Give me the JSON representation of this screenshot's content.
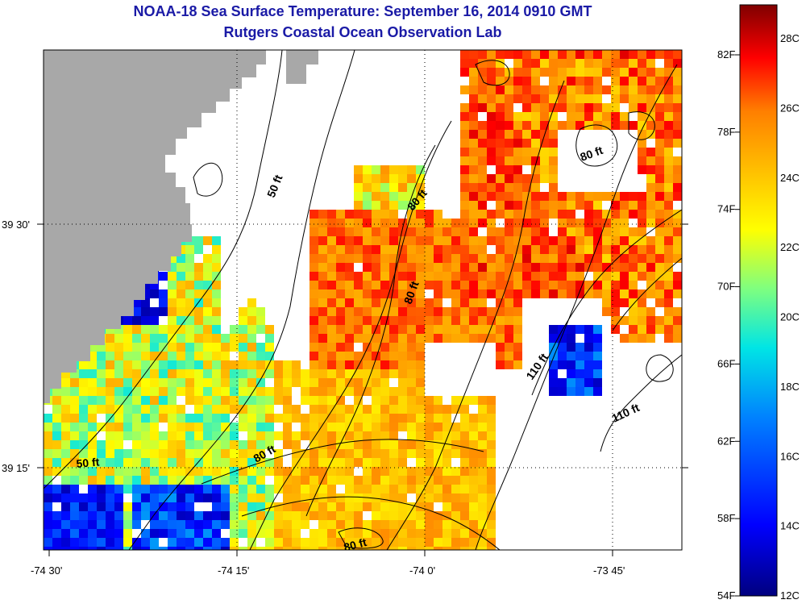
{
  "title": "NOAA-18 Sea Surface Temperature:  September 16, 2014 0910 GMT",
  "subtitle": "Rutgers Coastal Ocean Observation Lab",
  "lon_ticks": [
    "-74 30'",
    "-74 15'",
    "-74 0'",
    "-73 45'"
  ],
  "lat_ticks": [
    "39 30'",
    "39 15'"
  ],
  "contour_labels": [
    "50 ft",
    "80 ft",
    "80 ft",
    "80 ft",
    "80 ft",
    "110 ft",
    "110 ft",
    "50 ft",
    "80 ft"
  ],
  "colorbar": {
    "fahrenheit": [
      "82F",
      "78F",
      "74F",
      "70F",
      "66F",
      "62F",
      "58F",
      "54F"
    ],
    "celsius": [
      "28C",
      "26C",
      "24C",
      "22C",
      "20C",
      "18C",
      "16C",
      "14C",
      "12C"
    ],
    "range_c": [
      12,
      29
    ]
  },
  "colors": {
    "land": "#a8a8a8",
    "title": "#1a1aa6"
  }
}
